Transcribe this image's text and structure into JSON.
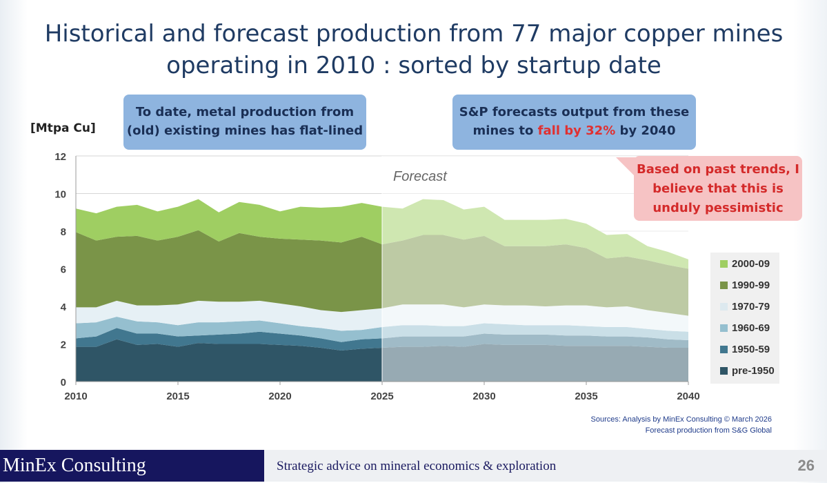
{
  "title_line1": "Historical and forecast production from 77 major copper mines",
  "title_line2": "operating in 2010 : sorted by startup date",
  "callout_left_line1": "To date, metal production from",
  "callout_left_line2": "(old) existing mines has flat-lined",
  "callout_right_line1": "S&P forecasts output from these",
  "callout_right_pre": "mines to ",
  "callout_right_highlight": "fall by 32%",
  "callout_right_post": " by 2040",
  "callout_pink_lines": [
    "Based on past trends, I",
    "believe that this is",
    "unduly pessimistic"
  ],
  "sources_line1": "Sources: Analysis by MinEx Consulting © March 2026",
  "sources_line2": "Forecast production from S&G Global",
  "footer_brand": "MinEx Consulting",
  "footer_tagline": "Strategic advice on mineral economics & exploration",
  "page_number": "26",
  "colors": {
    "pre1950": "#2f5566",
    "s1950": "#41778f",
    "s1960": "#95bfcf",
    "s1970": "#e6f0f5",
    "s1990": "#7a9448",
    "s2000": "#9fce62"
  },
  "chart_data": {
    "type": "area",
    "stacked": true,
    "ylabel": "[Mtpa Cu]",
    "ylim": [
      0,
      12
    ],
    "yticks": [
      0,
      2,
      4,
      6,
      8,
      10,
      12
    ],
    "xlim": [
      2010,
      2040
    ],
    "xticks": [
      2010,
      2015,
      2020,
      2025,
      2030,
      2035,
      2040
    ],
    "forecast_start": 2025,
    "forecast_label": "Forecast",
    "x": [
      2010,
      2011,
      2012,
      2013,
      2014,
      2015,
      2016,
      2017,
      2018,
      2019,
      2020,
      2021,
      2022,
      2023,
      2024,
      2025,
      2026,
      2027,
      2028,
      2029,
      2030,
      2031,
      2032,
      2033,
      2034,
      2035,
      2036,
      2037,
      2038,
      2039,
      2040
    ],
    "series": [
      {
        "name": "pre-1950",
        "color_key": "pre1950",
        "values": [
          1.85,
          1.85,
          2.25,
          1.95,
          2.0,
          1.85,
          2.05,
          2.0,
          2.0,
          2.0,
          1.95,
          1.9,
          1.8,
          1.65,
          1.75,
          1.8,
          1.85,
          1.85,
          1.9,
          1.85,
          2.0,
          1.95,
          1.95,
          1.95,
          1.9,
          1.9,
          1.9,
          1.9,
          1.85,
          1.8,
          1.8
        ]
      },
      {
        "name": "1950-59",
        "color_key": "s1950",
        "values": [
          0.45,
          0.55,
          0.6,
          0.6,
          0.55,
          0.55,
          0.4,
          0.5,
          0.55,
          0.65,
          0.6,
          0.55,
          0.5,
          0.45,
          0.5,
          0.5,
          0.55,
          0.55,
          0.5,
          0.55,
          0.55,
          0.55,
          0.55,
          0.55,
          0.55,
          0.55,
          0.5,
          0.5,
          0.5,
          0.45,
          0.4
        ]
      },
      {
        "name": "1960-69",
        "color_key": "s1960",
        "values": [
          0.8,
          0.75,
          0.6,
          0.65,
          0.6,
          0.6,
          0.7,
          0.65,
          0.65,
          0.6,
          0.55,
          0.5,
          0.55,
          0.6,
          0.5,
          0.6,
          0.6,
          0.6,
          0.55,
          0.55,
          0.55,
          0.55,
          0.5,
          0.5,
          0.55,
          0.5,
          0.5,
          0.5,
          0.45,
          0.45,
          0.45
        ]
      },
      {
        "name": "1970-79",
        "color_key": "s1970",
        "values": [
          0.85,
          0.8,
          0.85,
          0.85,
          0.9,
          1.1,
          1.15,
          1.1,
          1.05,
          1.05,
          1.05,
          1.05,
          0.95,
          1.0,
          1.05,
          1.0,
          1.1,
          1.1,
          1.15,
          1.0,
          1.0,
          1.0,
          1.05,
          1.0,
          1.05,
          1.1,
          1.05,
          1.1,
          1.0,
          0.95,
          0.85
        ]
      },
      {
        "name": "1990-99",
        "color_key": "s1990",
        "values": [
          4.0,
          3.55,
          3.4,
          3.7,
          3.45,
          3.6,
          3.75,
          3.2,
          3.65,
          3.4,
          3.45,
          3.55,
          3.7,
          3.7,
          3.9,
          3.4,
          3.4,
          3.7,
          3.7,
          3.6,
          3.65,
          3.15,
          3.15,
          3.2,
          3.25,
          3.05,
          2.6,
          2.65,
          2.65,
          2.55,
          2.5
        ]
      },
      {
        "name": "2000-09",
        "color_key": "s2000",
        "values": [
          1.25,
          1.45,
          1.6,
          1.65,
          1.55,
          1.6,
          1.65,
          1.55,
          1.65,
          1.7,
          1.45,
          1.75,
          1.75,
          1.9,
          1.8,
          2.0,
          1.7,
          1.9,
          1.85,
          1.6,
          1.55,
          1.4,
          1.4,
          1.4,
          1.35,
          1.3,
          1.25,
          1.2,
          0.75,
          0.7,
          0.5
        ]
      }
    ],
    "legend_order": [
      "2000-09",
      "1990-99",
      "1970-79",
      "1960-69",
      "1950-59",
      "pre-1950"
    ],
    "legend_position": "right"
  }
}
